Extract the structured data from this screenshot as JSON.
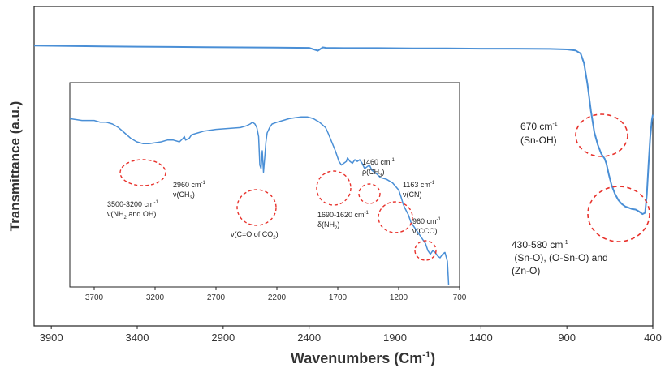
{
  "chart_data": [
    {
      "type": "line",
      "title": "",
      "xlabel": "Wavenumbers (Cm-1)",
      "xlabel_main": "Wavenumbers (Cm",
      "xlabel_sup": "-1",
      "xlabel_end": ")",
      "ylabel": "Transmittance (a.u.)",
      "xlim": [
        4000,
        400
      ],
      "x_reversed": true,
      "xticks": [
        "3900",
        "3400",
        "2900",
        "2400",
        "1900",
        "1400",
        "900",
        "400"
      ],
      "xtick_values": [
        3900,
        3400,
        2900,
        2400,
        1900,
        1400,
        900,
        400
      ],
      "ylim": [
        0,
        100
      ],
      "y_ticks_shown": false,
      "grid": false,
      "color": "#4a8fd6",
      "series": [
        {
          "x": [
            4000,
            3800,
            3600,
            3400,
            3200,
            3000,
            2800,
            2600,
            2400,
            2350,
            2320,
            2300,
            2200,
            2000,
            1800,
            1600,
            1400,
            1200,
            1000,
            900,
            850,
            820,
            800,
            780,
            760,
            740,
            720,
            700,
            680,
            670,
            655,
            640,
            620,
            600,
            580,
            560,
            540,
            520,
            500,
            480,
            460,
            445,
            435,
            425,
            415,
            405,
            400
          ],
          "y": [
            91.5,
            91.4,
            91.2,
            91.1,
            91.0,
            90.9,
            90.8,
            90.7,
            90.6,
            89.5,
            90.8,
            90.6,
            90.5,
            90.5,
            90.4,
            90.4,
            90.3,
            90.3,
            90.2,
            90.0,
            89.6,
            88.4,
            84.5,
            76.0,
            65.5,
            57.0,
            52.0,
            48.5,
            46.5,
            44.5,
            40.0,
            36.0,
            32.5,
            30.0,
            28.5,
            27.5,
            27.0,
            26.5,
            26.3,
            25.5,
            24.5,
            25.0,
            32.0,
            44.0,
            55.0,
            62.0,
            64.0
          ]
        }
      ],
      "annotations": [
        {
          "text_main": "670 cm",
          "text_sup": "-1",
          "text_line2": "(Sn-OH)"
        },
        {
          "text_line1": "430-580 cm",
          "text_sup": "-1",
          "text_line2": " (Sn-O), (O-Sn-O) and",
          "text_line3": "(Zn-O)"
        }
      ]
    },
    {
      "type": "line",
      "title": "",
      "xlabel": "",
      "ylabel": "",
      "xlim": [
        3900,
        700
      ],
      "x_reversed": true,
      "xticks": [
        "3700",
        "3200",
        "2700",
        "2200",
        "1700",
        "1200",
        "700"
      ],
      "xtick_values": [
        3700,
        3200,
        2700,
        2200,
        1700,
        1200,
        700
      ],
      "ylim": [
        0,
        100
      ],
      "color": "#4a8fd6",
      "series": [
        {
          "x": [
            3900,
            3800,
            3700,
            3650,
            3600,
            3550,
            3500,
            3450,
            3400,
            3350,
            3300,
            3250,
            3200,
            3150,
            3100,
            3050,
            3000,
            2970,
            2960,
            2950,
            2920,
            2900,
            2850,
            2800,
            2700,
            2600,
            2500,
            2450,
            2420,
            2400,
            2380,
            2365,
            2350,
            2340,
            2330,
            2320,
            2310,
            2300,
            2290,
            2280,
            2260,
            2240,
            2200,
            2150,
            2100,
            2050,
            2000,
            1950,
            1900,
            1850,
            1800,
            1780,
            1750,
            1720,
            1700,
            1690,
            1670,
            1650,
            1630,
            1620,
            1600,
            1580,
            1560,
            1540,
            1520,
            1500,
            1480,
            1460,
            1440,
            1420,
            1400,
            1380,
            1350,
            1300,
            1250,
            1200,
            1180,
            1163,
            1150,
            1120,
            1100,
            1080,
            1050,
            1020,
            1000,
            980,
            960,
            940,
            920,
            900,
            880,
            860,
            840,
            820,
            800,
            790
          ],
          "y": [
            88,
            87,
            87,
            86,
            86,
            85,
            83,
            80,
            77,
            75,
            74,
            74,
            74.5,
            75,
            76,
            76,
            75,
            77,
            78,
            76,
            77,
            79,
            80,
            81,
            82,
            82.5,
            83,
            84,
            85,
            86,
            85,
            83,
            78,
            62,
            60,
            70,
            58,
            66,
            75,
            80,
            83,
            85,
            86,
            87,
            88,
            88.5,
            89,
            89,
            88,
            86,
            83,
            80,
            75,
            70,
            66,
            64,
            62,
            63,
            64,
            66,
            64,
            63,
            65,
            64,
            65,
            63,
            60,
            61,
            62,
            59,
            58,
            57,
            55,
            54,
            52,
            48,
            44,
            40,
            38,
            34,
            30,
            28,
            25,
            22,
            20,
            18,
            14,
            12,
            14,
            13,
            11,
            10,
            12,
            13,
            8,
            -5
          ]
        }
      ],
      "annotations": [
        {
          "text_line1": "3500-3200 cm",
          "text_sup": "-1",
          "text_line2_main": "ν(NH",
          "text_line2_sub": "2",
          "text_line2_end": " and OH)"
        },
        {
          "text_line1": "2960 cm",
          "text_sup": "-1",
          "text_line2_main": "ν(CH",
          "text_line2_sub": "3",
          "text_line2_end": ")"
        },
        {
          "text_main": "ν(C=O of CO",
          "text_sub": "2",
          "text_end": ")"
        },
        {
          "text_line1": "1690-1620 cm",
          "text_sup": "-1",
          "text_line2_main": "δ(NH",
          "text_line2_sub": "2",
          "text_line2_end": ")"
        },
        {
          "text_line1": "1460 cm",
          "text_sup": "-1",
          "text_line2_main": "ρ(CH",
          "text_line2_sub": "3",
          "text_line2_end": ")"
        },
        {
          "text_line1": "1163 cm",
          "text_sup": "-1",
          "text_line2": "ν(CN)"
        },
        {
          "text_line1": "960 cm",
          "text_sup": "-1",
          "text_line2": "ν(CCO)"
        }
      ]
    }
  ]
}
